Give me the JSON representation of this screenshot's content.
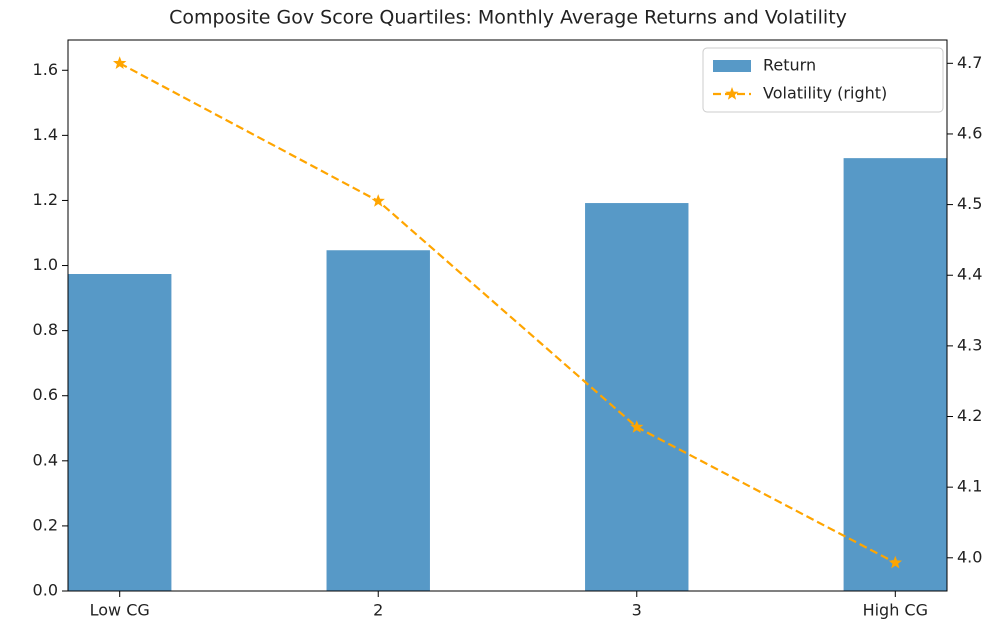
{
  "chart_data": {
    "type": "bar",
    "title": "Composite Gov Score Quartiles: Monthly Average Returns and Volatility",
    "categories": [
      "Low CG",
      "2",
      "3",
      "High CG"
    ],
    "series": [
      {
        "name": "Return",
        "type": "bar",
        "color": "#5799c7",
        "values": [
          0.974,
          1.047,
          1.192,
          1.33
        ]
      },
      {
        "name": "Volatility (right)",
        "type": "line",
        "axis": "y2",
        "color": "#ffa500",
        "values": [
          4.7,
          4.505,
          4.185,
          3.993
        ]
      }
    ],
    "ylim": [
      0,
      1.693
    ],
    "yticks": [
      {
        "value": 0,
        "label": "0.0"
      },
      0.2,
      0.4,
      0.6,
      0.8,
      {
        "value": 1,
        "label": "1.0"
      },
      1.2,
      1.4,
      1.6
    ],
    "y2lim": [
      3.953,
      4.733
    ],
    "y2ticks": [
      {
        "value": 4,
        "label": "4.0"
      },
      4.1,
      4.2,
      4.3,
      4.4,
      4.5,
      4.6,
      4.7
    ],
    "legend": "upper right"
  }
}
